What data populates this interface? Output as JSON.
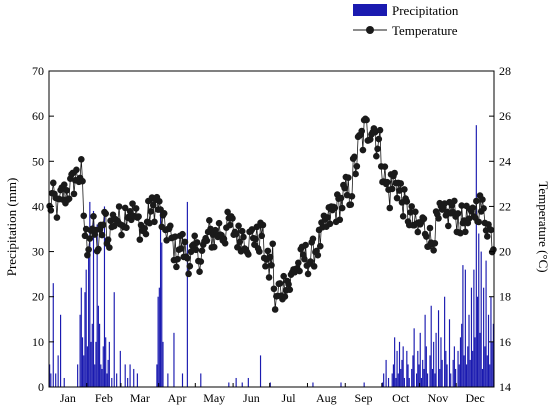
{
  "chart_data": {
    "type": "bar+line",
    "x_categories": [
      "Jan",
      "Feb",
      "Mar",
      "Apr",
      "May",
      "Jun",
      "Jul",
      "Aug",
      "Sep",
      "Oct",
      "Nov",
      "Dec"
    ],
    "y_left": {
      "label": "Precipitation (mm)",
      "range": [
        0,
        70
      ],
      "ticks": [
        0,
        10,
        20,
        30,
        40,
        50,
        60,
        70
      ]
    },
    "y_right": {
      "label": "Temperature (°C)",
      "range": [
        14,
        28
      ],
      "ticks": [
        14,
        16,
        18,
        20,
        22,
        24,
        26,
        28
      ]
    },
    "grid": false,
    "legend": {
      "placement": "top-right"
    },
    "series": [
      {
        "name": "Precipitation",
        "kind": "bar",
        "axis": "left",
        "color": "#1a1ab0",
        "day_values": [
          [
            0,
            5
          ],
          [
            1,
            3
          ],
          [
            3,
            23
          ],
          [
            5,
            3
          ],
          [
            7,
            7
          ],
          [
            9,
            16
          ],
          [
            12,
            2
          ],
          [
            23,
            5
          ],
          [
            25,
            16
          ],
          [
            26,
            22
          ],
          [
            27,
            11
          ],
          [
            28,
            7
          ],
          [
            29,
            21
          ],
          [
            30,
            26
          ],
          [
            31,
            9
          ],
          [
            32,
            30
          ],
          [
            33,
            41
          ],
          [
            34,
            10
          ],
          [
            35,
            14
          ],
          [
            36,
            39
          ],
          [
            37,
            5
          ],
          [
            38,
            10
          ],
          [
            39,
            36
          ],
          [
            40,
            18
          ],
          [
            41,
            14
          ],
          [
            42,
            5
          ],
          [
            43,
            4
          ],
          [
            44,
            9
          ],
          [
            45,
            40
          ],
          [
            46,
            11
          ],
          [
            47,
            3
          ],
          [
            48,
            6
          ],
          [
            49,
            10
          ],
          [
            51,
            2
          ],
          [
            53,
            21
          ],
          [
            55,
            3
          ],
          [
            58,
            8
          ],
          [
            62,
            5
          ],
          [
            64,
            2
          ],
          [
            66,
            5
          ],
          [
            69,
            4
          ],
          [
            72,
            3
          ],
          [
            88,
            5
          ],
          [
            89,
            20
          ],
          [
            90,
            22
          ],
          [
            91,
            40
          ],
          [
            92,
            32
          ],
          [
            93,
            10
          ],
          [
            97,
            3
          ],
          [
            102,
            12
          ],
          [
            109,
            3
          ],
          [
            113,
            41
          ],
          [
            124,
            3
          ],
          [
            147,
            1
          ],
          [
            153,
            2
          ],
          [
            158,
            1
          ],
          [
            163,
            2
          ],
          [
            173,
            7
          ],
          [
            181,
            1
          ],
          [
            216,
            1
          ],
          [
            239,
            1
          ],
          [
            258,
            1
          ],
          [
            273,
            1
          ],
          [
            274,
            3
          ],
          [
            276,
            6
          ],
          [
            278,
            2
          ],
          [
            281,
            3
          ],
          [
            282,
            5
          ],
          [
            283,
            11
          ],
          [
            284,
            2
          ],
          [
            285,
            8
          ],
          [
            286,
            3
          ],
          [
            287,
            10
          ],
          [
            288,
            4
          ],
          [
            289,
            6
          ],
          [
            290,
            9
          ],
          [
            291,
            2
          ],
          [
            293,
            8
          ],
          [
            294,
            5
          ],
          [
            295,
            2
          ],
          [
            297,
            4
          ],
          [
            298,
            7
          ],
          [
            299,
            13
          ],
          [
            301,
            3
          ],
          [
            302,
            8
          ],
          [
            303,
            5
          ],
          [
            304,
            12
          ],
          [
            305,
            2
          ],
          [
            306,
            6
          ],
          [
            307,
            4
          ],
          [
            308,
            16
          ],
          [
            309,
            9
          ],
          [
            310,
            3
          ],
          [
            312,
            7
          ],
          [
            313,
            18
          ],
          [
            314,
            4
          ],
          [
            315,
            10
          ],
          [
            316,
            3
          ],
          [
            317,
            12
          ],
          [
            319,
            17
          ],
          [
            320,
            4
          ],
          [
            321,
            11
          ],
          [
            322,
            6
          ],
          [
            324,
            20
          ],
          [
            325,
            8
          ],
          [
            326,
            5
          ],
          [
            328,
            15
          ],
          [
            329,
            3
          ],
          [
            331,
            6
          ],
          [
            332,
            9
          ],
          [
            333,
            4
          ],
          [
            335,
            8
          ],
          [
            336,
            5
          ],
          [
            337,
            11
          ],
          [
            338,
            14
          ],
          [
            339,
            27
          ],
          [
            340,
            7
          ],
          [
            341,
            26
          ],
          [
            342,
            5
          ],
          [
            343,
            9
          ],
          [
            344,
            16
          ],
          [
            345,
            6
          ],
          [
            346,
            22
          ],
          [
            347,
            8
          ],
          [
            348,
            26
          ],
          [
            349,
            11
          ],
          [
            350,
            58
          ],
          [
            351,
            20
          ],
          [
            352,
            34
          ],
          [
            353,
            12
          ],
          [
            354,
            30
          ],
          [
            355,
            4
          ],
          [
            356,
            22
          ],
          [
            357,
            9
          ],
          [
            358,
            28
          ],
          [
            359,
            7
          ],
          [
            360,
            16
          ],
          [
            361,
            5
          ],
          [
            362,
            20
          ],
          [
            363,
            10
          ],
          [
            364,
            14
          ]
        ]
      },
      {
        "name": "Temperature",
        "kind": "line",
        "axis": "right",
        "color": "#1a1a1a",
        "knots": [
          [
            0,
            21.8
          ],
          [
            2,
            22.4
          ],
          [
            4,
            22.3
          ],
          [
            7,
            21.8
          ],
          [
            10,
            22.5
          ],
          [
            14,
            22.6
          ],
          [
            18,
            22.9
          ],
          [
            22,
            23.3
          ],
          [
            26,
            23.5
          ],
          [
            29,
            20.8
          ],
          [
            31,
            20.3
          ],
          [
            34,
            21.1
          ],
          [
            37,
            20.8
          ],
          [
            40,
            20.2
          ],
          [
            43,
            21.0
          ],
          [
            46,
            21.4
          ],
          [
            48,
            20.4
          ],
          [
            50,
            21.1
          ],
          [
            54,
            21.6
          ],
          [
            58,
            21.3
          ],
          [
            62,
            21.7
          ],
          [
            66,
            21.9
          ],
          [
            70,
            21.5
          ],
          [
            74,
            21.2
          ],
          [
            78,
            20.8
          ],
          [
            81,
            21.6
          ],
          [
            85,
            21.9
          ],
          [
            88,
            22.2
          ],
          [
            91,
            21.6
          ],
          [
            94,
            21.0
          ],
          [
            97,
            20.9
          ],
          [
            100,
            20.5
          ],
          [
            104,
            19.9
          ],
          [
            108,
            20.4
          ],
          [
            111,
            20.0
          ],
          [
            115,
            19.6
          ],
          [
            119,
            20.0
          ],
          [
            123,
            19.8
          ],
          [
            127,
            20.2
          ],
          [
            131,
            20.8
          ],
          [
            135,
            20.6
          ],
          [
            139,
            21.0
          ],
          [
            143,
            20.8
          ],
          [
            147,
            21.2
          ],
          [
            151,
            21.0
          ],
          [
            155,
            20.6
          ],
          [
            159,
            20.8
          ],
          [
            163,
            20.4
          ],
          [
            167,
            20.8
          ],
          [
            171,
            20.4
          ],
          [
            174,
            20.9
          ],
          [
            177,
            19.7
          ],
          [
            180,
            19.2
          ],
          [
            183,
            19.9
          ],
          [
            185,
            17.4
          ],
          [
            188,
            18.3
          ],
          [
            191,
            18.4
          ],
          [
            194,
            18.8
          ],
          [
            197,
            18.5
          ],
          [
            201,
            19.3
          ],
          [
            205,
            19.4
          ],
          [
            209,
            19.8
          ],
          [
            213,
            19.6
          ],
          [
            217,
            20.0
          ],
          [
            221,
            20.4
          ],
          [
            225,
            20.9
          ],
          [
            229,
            21.4
          ],
          [
            233,
            21.8
          ],
          [
            237,
            22.0
          ],
          [
            241,
            22.3
          ],
          [
            245,
            22.5
          ],
          [
            248,
            23.0
          ],
          [
            251,
            23.9
          ],
          [
            254,
            24.6
          ],
          [
            257,
            25.1
          ],
          [
            260,
            25.3
          ],
          [
            263,
            25.8
          ],
          [
            266,
            25.5
          ],
          [
            269,
            24.9
          ],
          [
            272,
            24.4
          ],
          [
            275,
            23.2
          ],
          [
            278,
            22.6
          ],
          [
            281,
            22.9
          ],
          [
            284,
            23.4
          ],
          [
            287,
            22.6
          ],
          [
            290,
            22.2
          ],
          [
            293,
            21.8
          ],
          [
            296,
            21.5
          ],
          [
            299,
            21.2
          ],
          [
            302,
            20.9
          ],
          [
            305,
            21.3
          ],
          [
            309,
            21.0
          ],
          [
            313,
            20.4
          ],
          [
            317,
            21.1
          ],
          [
            321,
            21.6
          ],
          [
            325,
            21.4
          ],
          [
            329,
            21.9
          ],
          [
            333,
            21.6
          ],
          [
            337,
            21.3
          ],
          [
            341,
            21.5
          ],
          [
            345,
            21.2
          ],
          [
            349,
            21.9
          ],
          [
            353,
            22.0
          ],
          [
            357,
            21.6
          ],
          [
            361,
            20.9
          ],
          [
            364,
            20.4
          ]
        ]
      }
    ]
  }
}
